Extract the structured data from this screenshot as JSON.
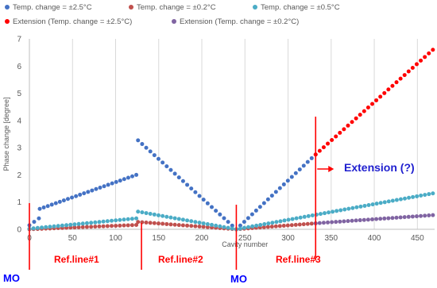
{
  "chart_data": {
    "type": "scatter",
    "xlabel": "Cavity number",
    "ylabel": "Phase change [degree]",
    "xlim": [
      0,
      470
    ],
    "ylim": [
      0,
      7
    ],
    "x_ticks": [
      0,
      50,
      100,
      150,
      200,
      250,
      300,
      350,
      400,
      450
    ],
    "y_ticks": [
      0,
      1,
      2,
      3,
      4,
      5,
      6,
      7
    ],
    "grid": "vertical",
    "legend_position": "top",
    "series": [
      {
        "name": "Temp. change = ±2.5°C",
        "color": "#4472c4",
        "segments": [
          {
            "x_start": 0,
            "x_end": 11,
            "y_start": 0.15,
            "y_end": 0.4
          },
          {
            "x_start": 12,
            "x_end": 124,
            "y_start": 0.75,
            "y_end": 2.0
          },
          {
            "x_start": 126,
            "x_end": 240,
            "y_start": 3.27,
            "y_end": 0.0
          },
          {
            "x_start": 240,
            "x_end": 332,
            "y_start": 0.0,
            "y_end": 2.75
          }
        ]
      },
      {
        "name": "Temp. change = ±0.2°C",
        "color": "#c0504d",
        "segments": [
          {
            "x_start": 0,
            "x_end": 124,
            "y_start": 0.0,
            "y_end": 0.16
          },
          {
            "x_start": 126,
            "x_end": 240,
            "y_start": 0.27,
            "y_end": 0.0
          },
          {
            "x_start": 240,
            "x_end": 332,
            "y_start": 0.0,
            "y_end": 0.22
          }
        ]
      },
      {
        "name": "Temp. change = ±0.5°C",
        "color": "#4bacc6",
        "segments": [
          {
            "x_start": 0,
            "x_end": 124,
            "y_start": 0.02,
            "y_end": 0.4
          },
          {
            "x_start": 126,
            "x_end": 240,
            "y_start": 0.65,
            "y_end": 0.0
          },
          {
            "x_start": 240,
            "x_end": 468,
            "y_start": 0.0,
            "y_end": 1.32
          }
        ]
      },
      {
        "name": "Extension (Temp. change = ±2.5°C)",
        "color": "#ff0000",
        "segments": [
          {
            "x_start": 332,
            "x_end": 468,
            "y_start": 2.75,
            "y_end": 6.6
          }
        ]
      },
      {
        "name": "Extension (Temp. change = ±0.2°C)",
        "color": "#8064a2",
        "segments": [
          {
            "x_start": 332,
            "x_end": 468,
            "y_start": 0.22,
            "y_end": 0.52
          }
        ]
      }
    ],
    "reference_lines": [
      {
        "x": 0,
        "label": "MO"
      },
      {
        "x": 0,
        "label": "Ref.line#1"
      },
      {
        "x": 130,
        "label": "Ref.line#2"
      },
      {
        "x": 240,
        "label": "MO"
      },
      {
        "x": 332,
        "label": "Ref.line#3"
      }
    ],
    "annotations": {
      "extension_label": "Extension (?)",
      "arrow_at": {
        "x": 332,
        "y": 2.3
      }
    }
  }
}
